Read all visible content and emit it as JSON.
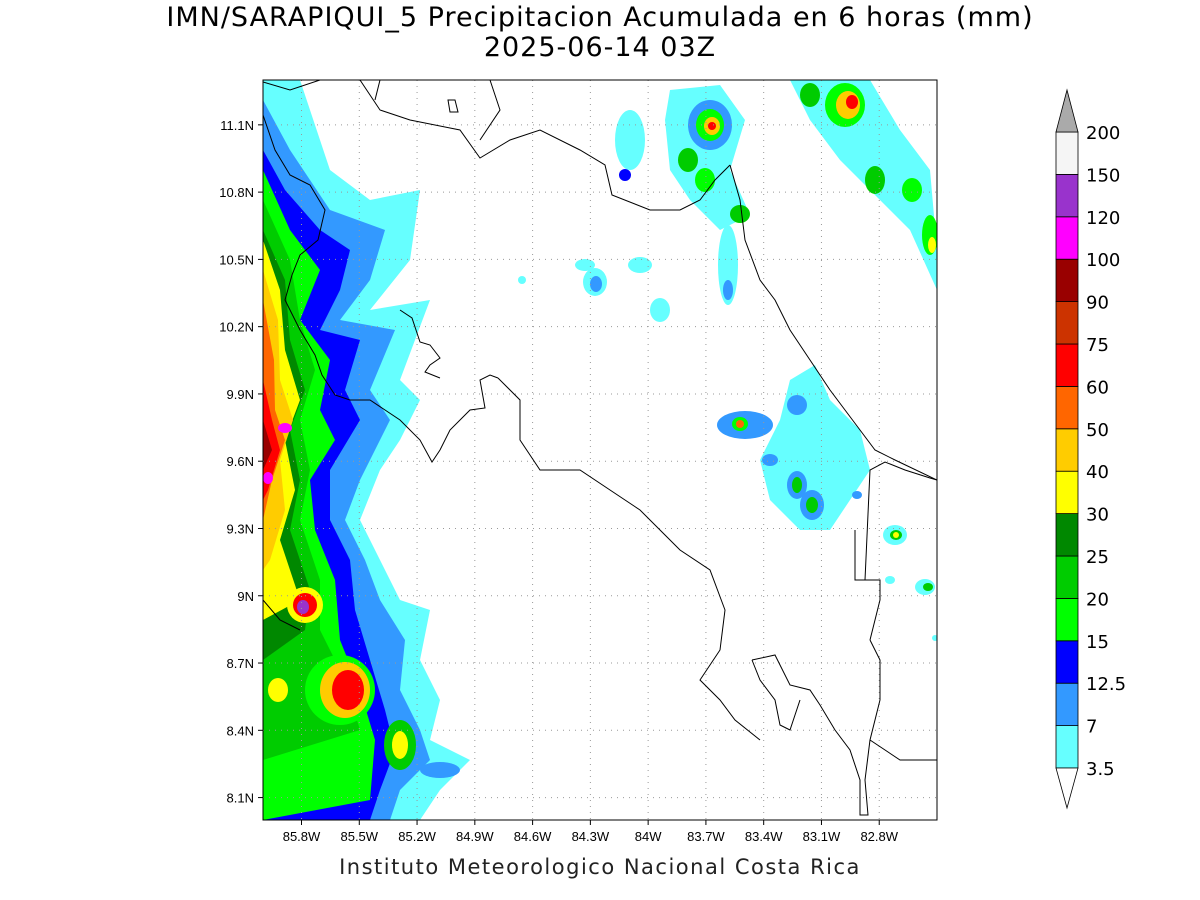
{
  "map": {
    "title_line1": "IMN/SARAPIQUI_5 Precipitacion Acumulada en 6 horas (mm)",
    "title_line2": "2025-06-14 03Z",
    "footer": "Instituto Meteorologico Nacional Costa Rica",
    "lon_range": [
      -86.0,
      -82.5
    ],
    "lat_range": [
      8.0,
      11.3
    ],
    "lon_ticks": [
      "85.8W",
      "85.5W",
      "85.2W",
      "84.9W",
      "84.6W",
      "84.3W",
      "84W",
      "83.7W",
      "83.4W",
      "83.1W",
      "82.8W"
    ],
    "lat_ticks": [
      "11.1N",
      "10.8N",
      "10.5N",
      "10.2N",
      "9.9N",
      "9.6N",
      "9.3N",
      "9N",
      "8.7N",
      "8.4N",
      "8.1N"
    ],
    "grid": "dotted"
  },
  "colorbar": {
    "levels": [
      "3.5",
      "7",
      "12.5",
      "15",
      "20",
      "25",
      "30",
      "40",
      "50",
      "60",
      "75",
      "90",
      "100",
      "120",
      "150",
      "200"
    ],
    "colors": [
      "#66ffff",
      "#3399ff",
      "#0000ff",
      "#00ff00",
      "#00cc00",
      "#008800",
      "#ffff00",
      "#ffcc00",
      "#ff6600",
      "#ff0000",
      "#cc3300",
      "#990000",
      "#ff00ff",
      "#9933cc",
      "#f5f5f5",
      "#aaaaaa"
    ]
  }
}
